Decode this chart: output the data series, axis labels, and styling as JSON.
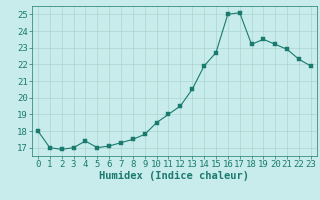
{
  "x": [
    0,
    1,
    2,
    3,
    4,
    5,
    6,
    7,
    8,
    9,
    10,
    11,
    12,
    13,
    14,
    15,
    16,
    17,
    18,
    19,
    20,
    21,
    22,
    23
  ],
  "y": [
    18.0,
    17.0,
    16.9,
    17.0,
    17.4,
    17.0,
    17.1,
    17.3,
    17.5,
    17.8,
    18.5,
    19.0,
    19.5,
    20.5,
    21.9,
    22.7,
    25.0,
    25.1,
    23.2,
    23.5,
    23.2,
    22.9,
    22.3,
    21.9
  ],
  "line_color": "#1a7a6e",
  "marker_color": "#1a7a6e",
  "bg_color": "#c8ecec",
  "grid_color": "#aad4d0",
  "xlabel": "Humidex (Indice chaleur)",
  "xlim": [
    -0.5,
    23.5
  ],
  "ylim": [
    16.5,
    25.5
  ],
  "yticks": [
    17,
    18,
    19,
    20,
    21,
    22,
    23,
    24,
    25
  ],
  "xticks": [
    0,
    1,
    2,
    3,
    4,
    5,
    6,
    7,
    8,
    9,
    10,
    11,
    12,
    13,
    14,
    15,
    16,
    17,
    18,
    19,
    20,
    21,
    22,
    23
  ],
  "tick_color": "#1a7a6e",
  "label_color": "#1a7a6e",
  "font_size": 6.5
}
